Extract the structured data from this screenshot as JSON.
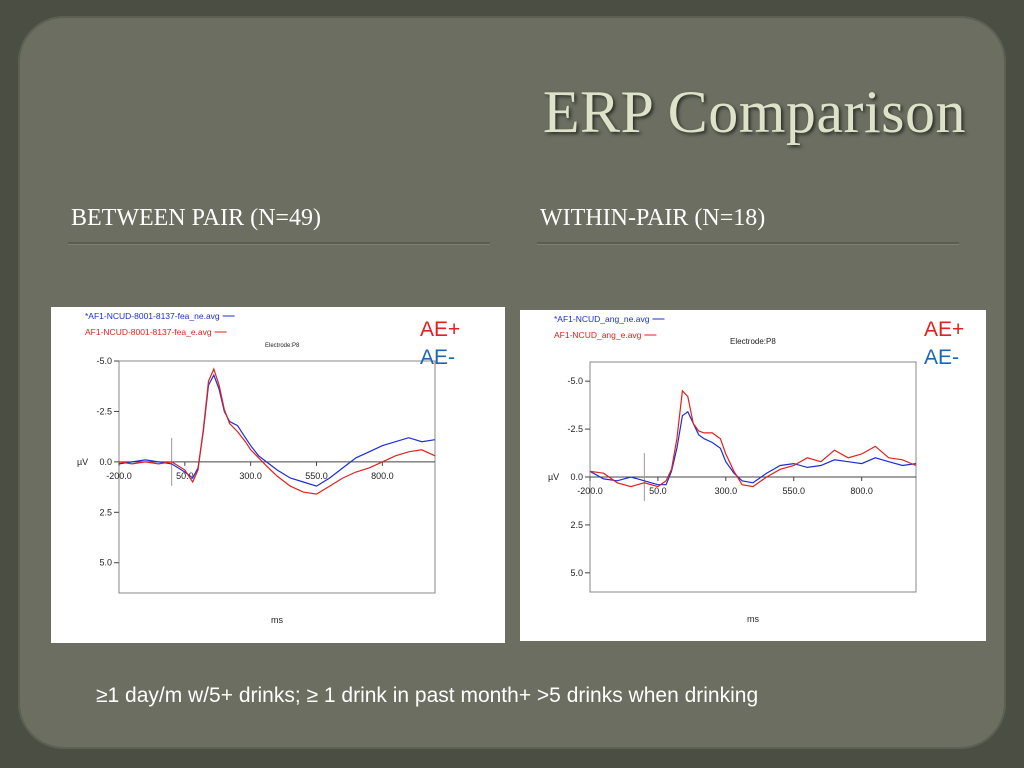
{
  "slide": {
    "title": "ERP Comparison",
    "left_heading": "BETWEEN PAIR (N=49)",
    "right_heading": "WITHIN-PAIR (N=18)",
    "footnote": "≥1 day/m w/5+ drinks; ≥ 1 drink in past month+ >5 drinks when drinking",
    "tag_ae_plus": "AE+",
    "tag_ae_minus": "AE-",
    "colors": {
      "ae_plus": "#e0211d",
      "ae_minus": "#1b67b6",
      "title": "#dde2c9",
      "background": "#6b6e61"
    }
  },
  "chart_data": [
    {
      "type": "line",
      "electrode_label": "Electrode:P8",
      "xlabel": "ms",
      "ylabel": "µV",
      "xlim": [
        -200,
        1000
      ],
      "ylim": [
        -5.0,
        6.5
      ],
      "y_inverted": true,
      "x_ticks": [
        "-200.0",
        "50.0",
        "300.0",
        "550.0",
        "800.0"
      ],
      "y_ticks": [
        "-5.0",
        "-2.5",
        "0.0",
        "2.5",
        "5.0"
      ],
      "series": [
        {
          "name": "*AF1-NCUD-8001-8137-fea_ne.avg",
          "color": "#1b2fd6",
          "x": [
            -200,
            -150,
            -100,
            -50,
            0,
            50,
            80,
            100,
            120,
            140,
            160,
            180,
            200,
            220,
            250,
            280,
            300,
            330,
            360,
            400,
            450,
            500,
            550,
            600,
            650,
            700,
            750,
            800,
            850,
            900,
            950,
            1000
          ],
          "y": [
            0.1,
            0,
            -0.1,
            0,
            0.1,
            0.5,
            0.8,
            0.3,
            -1.5,
            -3.8,
            -4.3,
            -3.6,
            -2.5,
            -2.0,
            -1.8,
            -1.2,
            -0.8,
            -0.3,
            0,
            0.4,
            0.8,
            1.0,
            1.2,
            0.8,
            0.3,
            -0.2,
            -0.5,
            -0.8,
            -1.0,
            -1.2,
            -1.0,
            -1.1
          ]
        },
        {
          "name": "AF1-NCUD-8001-8137-fea_e.avg",
          "color": "#e0211d",
          "x": [
            -200,
            -150,
            -100,
            -50,
            0,
            50,
            80,
            100,
            120,
            140,
            160,
            180,
            200,
            220,
            250,
            280,
            300,
            330,
            360,
            400,
            450,
            500,
            550,
            600,
            650,
            700,
            750,
            800,
            850,
            900,
            950,
            1000
          ],
          "y": [
            0,
            0.1,
            0,
            0.1,
            0,
            0.4,
            1.0,
            0.4,
            -1.6,
            -4.0,
            -4.6,
            -3.8,
            -2.6,
            -1.9,
            -1.5,
            -1.0,
            -0.6,
            -0.2,
            0.2,
            0.7,
            1.2,
            1.5,
            1.6,
            1.2,
            0.8,
            0.5,
            0.3,
            0,
            -0.3,
            -0.5,
            -0.6,
            -0.3
          ]
        }
      ]
    },
    {
      "type": "line",
      "electrode_label": "Electrode:P8",
      "xlabel": "ms",
      "ylabel": "µV",
      "xlim": [
        -200,
        1000
      ],
      "ylim": [
        -6.0,
        6.0
      ],
      "y_inverted": true,
      "x_ticks": [
        "-200.0",
        "50.0",
        "300.0",
        "550.0",
        "800.0"
      ],
      "y_ticks": [
        "-5.0",
        "-2.5",
        "0.0",
        "2.5",
        "5.0"
      ],
      "series": [
        {
          "name": "*AF1-NCUD_ang_ne.avg",
          "color": "#1b2fd6",
          "x": [
            -200,
            -150,
            -100,
            -50,
            0,
            50,
            80,
            100,
            120,
            140,
            160,
            180,
            200,
            220,
            250,
            280,
            300,
            330,
            360,
            400,
            450,
            500,
            550,
            600,
            650,
            700,
            750,
            800,
            850,
            900,
            950,
            1000
          ],
          "y": [
            -0.3,
            0.1,
            0.2,
            0,
            0.2,
            0.4,
            0.4,
            -0.3,
            -1.5,
            -3.2,
            -3.4,
            -2.8,
            -2.2,
            -2.0,
            -1.8,
            -1.5,
            -0.8,
            -0.2,
            0.2,
            0.3,
            -0.2,
            -0.6,
            -0.7,
            -0.5,
            -0.6,
            -0.9,
            -0.8,
            -0.7,
            -1.0,
            -0.8,
            -0.6,
            -0.7
          ]
        },
        {
          "name": "AF1-NCUD_ang_e.avg",
          "color": "#e0211d",
          "x": [
            -200,
            -150,
            -100,
            -50,
            0,
            50,
            80,
            100,
            120,
            140,
            160,
            180,
            200,
            220,
            250,
            280,
            300,
            330,
            360,
            400,
            450,
            500,
            550,
            600,
            650,
            700,
            750,
            800,
            850,
            900,
            950,
            1000
          ],
          "y": [
            -0.3,
            -0.2,
            0.3,
            0.5,
            0.3,
            0.5,
            0.2,
            -0.4,
            -2.0,
            -4.5,
            -4.2,
            -2.8,
            -2.4,
            -2.3,
            -2.3,
            -2.0,
            -1.2,
            -0.3,
            0.4,
            0.5,
            0,
            -0.4,
            -0.6,
            -1.0,
            -0.8,
            -1.4,
            -1.0,
            -1.2,
            -1.6,
            -1.0,
            -0.9,
            -0.6
          ]
        }
      ]
    }
  ]
}
